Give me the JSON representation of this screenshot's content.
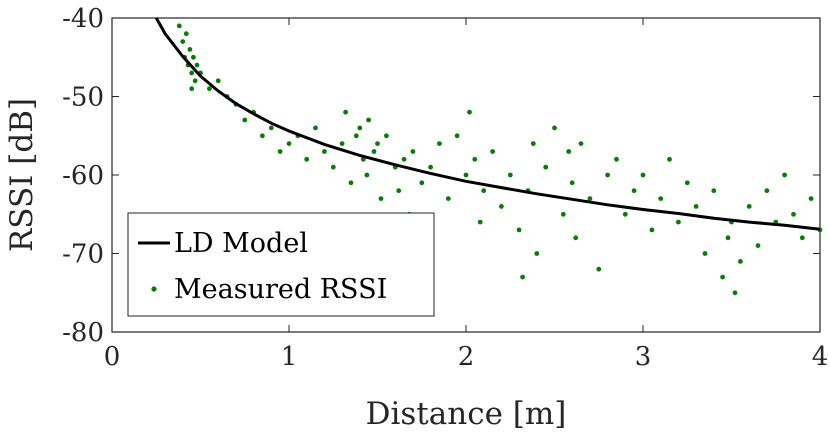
{
  "chart_data": {
    "type": "scatter",
    "title": "",
    "xlabel": "Distance [m]",
    "ylabel": "RSSI [dB]",
    "xlim": [
      0,
      4
    ],
    "ylim": [
      -80,
      -40
    ],
    "xticks": [
      "0",
      "1",
      "2",
      "3",
      "4"
    ],
    "yticks": [
      "-40",
      "-50",
      "-60",
      "-70",
      "-80"
    ],
    "grid": false,
    "legend": {
      "position": "bottom-left"
    },
    "series": [
      {
        "name": "LD Model",
        "kind": "line",
        "color": "#000000",
        "x": [
          0.25,
          0.3,
          0.4,
          0.5,
          0.6,
          0.7,
          0.8,
          0.9,
          1.0,
          1.2,
          1.4,
          1.6,
          1.8,
          2.0,
          2.2,
          2.4,
          2.6,
          2.8,
          3.0,
          3.2,
          3.4,
          3.6,
          3.8,
          4.0
        ],
        "y": [
          -40.0,
          -42.0,
          -44.9,
          -47.4,
          -49.3,
          -50.9,
          -52.2,
          -53.4,
          -54.4,
          -56.1,
          -57.5,
          -58.7,
          -59.8,
          -60.8,
          -61.6,
          -62.4,
          -63.1,
          -63.8,
          -64.4,
          -64.9,
          -65.5,
          -66.0,
          -66.4,
          -66.9
        ]
      },
      {
        "name": "Measured RSSI",
        "kind": "scatter",
        "color": "#0b7a0b",
        "x": [
          0.38,
          0.4,
          0.41,
          0.42,
          0.43,
          0.44,
          0.45,
          0.45,
          0.46,
          0.47,
          0.48,
          0.5,
          0.55,
          0.6,
          0.65,
          0.7,
          0.75,
          0.8,
          0.85,
          0.9,
          0.95,
          1.0,
          1.05,
          1.1,
          1.15,
          1.2,
          1.25,
          1.3,
          1.32,
          1.35,
          1.38,
          1.4,
          1.42,
          1.44,
          1.45,
          1.46,
          1.48,
          1.5,
          1.52,
          1.55,
          1.58,
          1.6,
          1.62,
          1.65,
          1.68,
          1.7,
          1.75,
          1.8,
          1.85,
          1.9,
          1.95,
          2.0,
          2.02,
          2.05,
          2.08,
          2.1,
          2.15,
          2.2,
          2.25,
          2.3,
          2.32,
          2.35,
          2.38,
          2.4,
          2.45,
          2.5,
          2.55,
          2.58,
          2.6,
          2.62,
          2.65,
          2.7,
          2.75,
          2.8,
          2.85,
          2.9,
          2.95,
          3.0,
          3.05,
          3.1,
          3.15,
          3.2,
          3.25,
          3.3,
          3.35,
          3.4,
          3.45,
          3.48,
          3.5,
          3.52,
          3.55,
          3.6,
          3.65,
          3.7,
          3.75,
          3.8,
          3.85,
          3.9,
          3.95,
          4.0
        ],
        "y": [
          -41,
          -43,
          -45,
          -42,
          -46,
          -44,
          -47,
          -49,
          -45,
          -48,
          -46,
          -47,
          -49,
          -48,
          -50,
          -51,
          -53,
          -52,
          -55,
          -54,
          -57,
          -56,
          -55,
          -58,
          -54,
          -57,
          -59,
          -56,
          -52,
          -61,
          -55,
          -54,
          -58,
          -60,
          -53,
          -66,
          -57,
          -56,
          -63,
          -55,
          -70,
          -59,
          -62,
          -58,
          -65,
          -57,
          -61,
          -59,
          -56,
          -63,
          -55,
          -60,
          -52,
          -58,
          -66,
          -62,
          -57,
          -64,
          -60,
          -67,
          -73,
          -62,
          -56,
          -70,
          -59,
          -54,
          -65,
          -57,
          -61,
          -68,
          -56,
          -63,
          -72,
          -60,
          -58,
          -65,
          -62,
          -60,
          -67,
          -63,
          -58,
          -66,
          -61,
          -64,
          -70,
          -62,
          -73,
          -68,
          -66,
          -75,
          -71,
          -64,
          -69,
          -62,
          -66,
          -60,
          -65,
          -68,
          -63,
          -67
        ]
      }
    ]
  }
}
